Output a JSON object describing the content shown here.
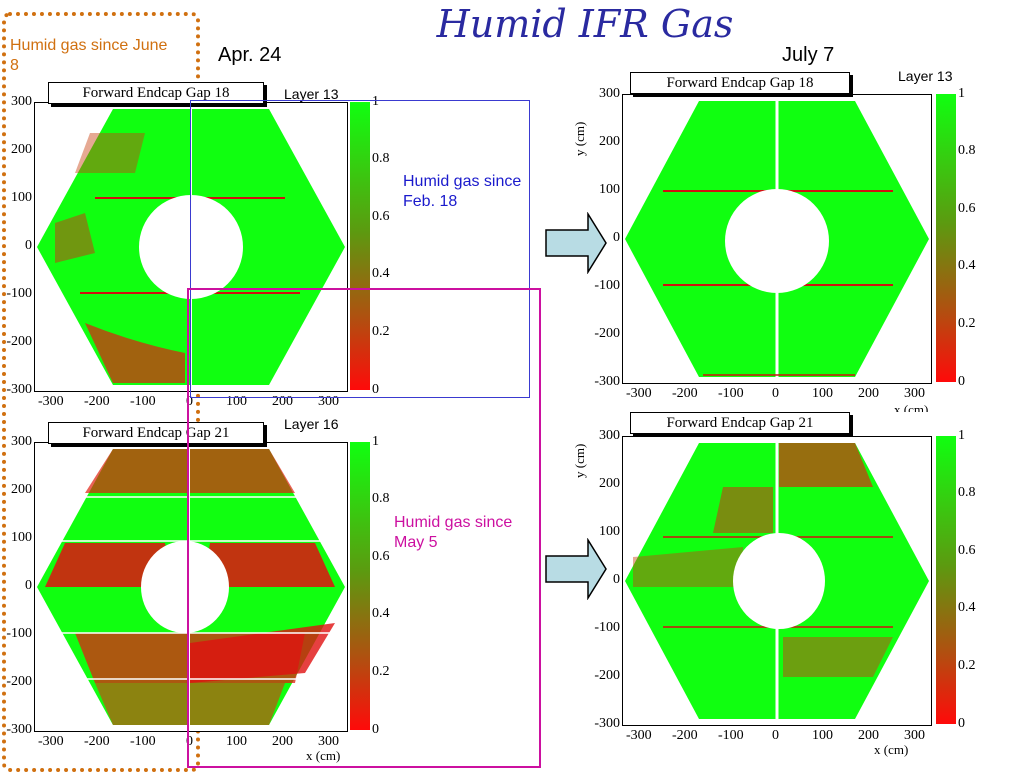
{
  "title": "Humid IFR Gas",
  "dates": {
    "left": "Apr. 24",
    "right": "July 7"
  },
  "notes": {
    "june": "Humid gas since June 8",
    "feb": "Humid gas since Feb. 18",
    "may": "Humid gas since May 5"
  },
  "colors": {
    "title": "#2a2aa0",
    "june": "#d07010",
    "feb": "#1a1acc",
    "may": "#cc10a0",
    "green": "#10ff10",
    "red": "#ff1010"
  },
  "plots": {
    "tl": {
      "label": "Forward Endcap Gap 18",
      "layer": "Layer 13"
    },
    "bl": {
      "label": "Forward Endcap Gap 21",
      "layer": "Layer 16"
    },
    "tr": {
      "label": "Forward Endcap Gap 18",
      "layer": "Layer 13"
    },
    "br": {
      "label": "Forward Endcap Gap 21",
      "layer": ""
    }
  },
  "axes": {
    "yticks": [
      "300",
      "200",
      "100",
      "0",
      "-100",
      "-200",
      "-300"
    ],
    "xticks": [
      "-300",
      "-200",
      "-100",
      "0",
      "100",
      "200",
      "300"
    ],
    "cbticks": [
      "1",
      "0.8",
      "0.6",
      "0.4",
      "0.2",
      "0"
    ],
    "xlabel": "x (cm)",
    "ylabel": "y (cm)"
  }
}
